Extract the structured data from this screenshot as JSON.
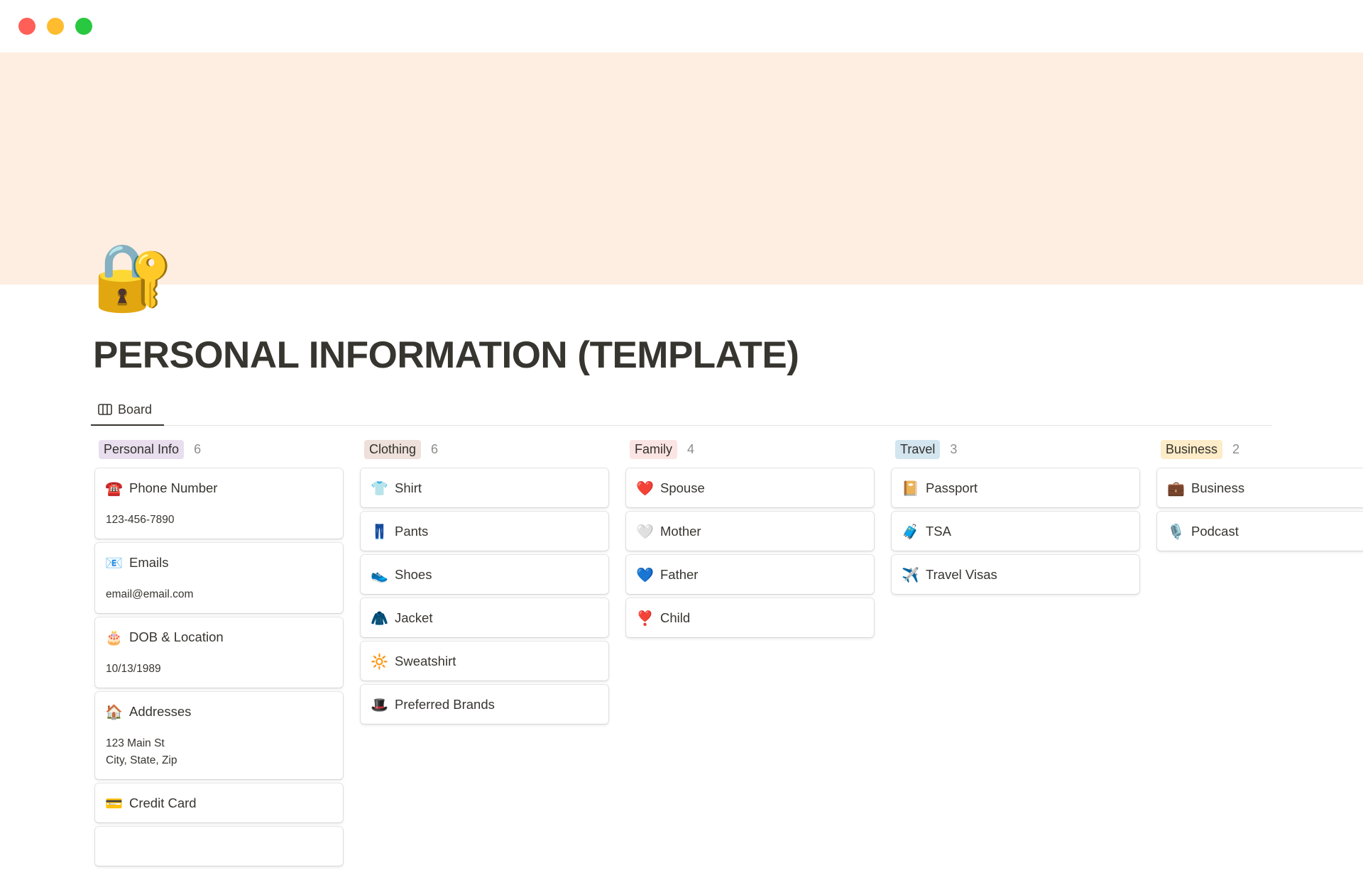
{
  "window": {
    "controls": [
      {
        "name": "close",
        "color": "#ff5f57"
      },
      {
        "name": "minimize",
        "color": "#febc2e"
      },
      {
        "name": "maximize",
        "color": "#28c840"
      }
    ]
  },
  "page": {
    "icon": "🔐",
    "cover_color": "#fdeee1",
    "title": "PERSONAL INFORMATION (TEMPLATE)"
  },
  "view": {
    "tab_label": "Board",
    "tab_icon": "board-icon"
  },
  "columns": [
    {
      "label": "Personal Info",
      "count": "6",
      "color": "#e8deee",
      "cards": [
        {
          "icon": "☎️",
          "title": "Phone Number",
          "props": [
            "123-456-7890"
          ]
        },
        {
          "icon": "📧",
          "title": "Emails",
          "props": [
            "email@email.com"
          ]
        },
        {
          "icon": "🎂",
          "title": "DOB & Location",
          "props": [
            "10/13/1989"
          ]
        },
        {
          "icon": "🏠",
          "title": "Addresses",
          "props": [
            "123 Main St",
            "City, State, Zip"
          ]
        },
        {
          "icon": "💳",
          "title": "Credit Card",
          "props": []
        },
        {
          "icon": "",
          "title": "",
          "props": []
        }
      ]
    },
    {
      "label": "Clothing",
      "count": "6",
      "color": "#eee0da",
      "cards": [
        {
          "icon": "👕",
          "title": "Shirt"
        },
        {
          "icon": "👖",
          "title": "Pants"
        },
        {
          "icon": "👟",
          "title": "Shoes"
        },
        {
          "icon": "🧥",
          "title": "Jacket"
        },
        {
          "icon": "🔆",
          "title": "Sweatshirt"
        },
        {
          "icon": "🎩",
          "title": "Preferred Brands"
        }
      ]
    },
    {
      "label": "Family",
      "count": "4",
      "color": "#fbe4e4",
      "cards": [
        {
          "icon": "❤️",
          "title": "Spouse"
        },
        {
          "icon": "🤍",
          "title": "Mother"
        },
        {
          "icon": "💙",
          "title": "Father"
        },
        {
          "icon": "❣️",
          "title": "Child"
        }
      ]
    },
    {
      "label": "Travel",
      "count": "3",
      "color": "#d3e5ef",
      "cards": [
        {
          "icon": "📔",
          "title": "Passport"
        },
        {
          "icon": "🧳",
          "title": "TSA"
        },
        {
          "icon": "✈️",
          "title": "Travel Visas"
        }
      ]
    },
    {
      "label": "Business",
      "count": "2",
      "color": "#fdecc8",
      "cards": [
        {
          "icon": "💼",
          "title": "Business"
        },
        {
          "icon": "🎙️",
          "title": "Podcast"
        }
      ]
    }
  ]
}
